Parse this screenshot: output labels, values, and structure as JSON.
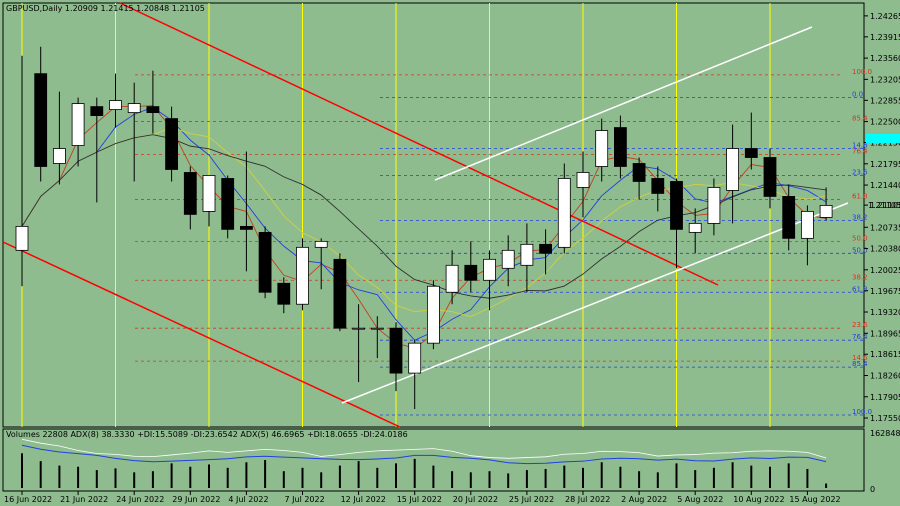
{
  "window": {
    "symbol_info": "GBPUSD,Daily  1.20909 1.21415 1.20848 1.21105"
  },
  "indicator_info": "Volumes 22808  ADX(8) 38.3330 +DI:15.5089 -DI:23.6542  ADX(5) 46.6965 +DI:18.0655 -DI:24.0186",
  "colors": {
    "background": "#8fbc8f",
    "bull_candle": "#ffffff",
    "bear_candle": "#000000",
    "channel_red": "#ff0000",
    "channel_white": "#ffffff",
    "fib_red": "#e03020",
    "fib_blue": "#2040e0",
    "date_markers": "#ffff00",
    "current_price_box": "#00ffff"
  },
  "chart_data": {
    "type": "candlestick",
    "y_range": [
      1.174,
      1.2448
    ],
    "price_ticks": [
      "1.24265",
      "1.23915",
      "1.23560",
      "1.23205",
      "1.22855",
      "1.22500",
      "1.22150",
      "1.21795",
      "1.21440",
      "1.21105",
      "1.20735",
      "1.20380",
      "1.20025",
      "1.19675",
      "1.19320",
      "1.18965",
      "1.18615",
      "1.18260",
      "1.17905",
      "1.17550"
    ],
    "current_price": "1.21105",
    "date_labels": [
      {
        "label": "16 Jun 2022",
        "i": 0
      },
      {
        "label": "21 Jun 2022",
        "i": 3
      },
      {
        "label": "24 Jun 2022",
        "i": 6
      },
      {
        "label": "29 Jun 2022",
        "i": 9
      },
      {
        "label": "4 Jul 2022",
        "i": 12
      },
      {
        "label": "7 Jul 2022",
        "i": 15
      },
      {
        "label": "12 Jul 2022",
        "i": 18
      },
      {
        "label": "15 Jul 2022",
        "i": 21
      },
      {
        "label": "20 Jul 2022",
        "i": 24
      },
      {
        "label": "25 Jul 2022",
        "i": 27
      },
      {
        "label": "28 Jul 2022",
        "i": 30
      },
      {
        "label": "2 Aug 2022",
        "i": 33
      },
      {
        "label": "5 Aug 2022",
        "i": 36
      },
      {
        "label": "10 Aug 2022",
        "i": 39
      },
      {
        "label": "15 Aug 2022",
        "i": 42
      }
    ],
    "candles": [
      {
        "o": 1.2035,
        "h": 1.236,
        "l": 1.1975,
        "c": 1.2075
      },
      {
        "o": 1.233,
        "h": 1.2375,
        "l": 1.215,
        "c": 1.2175
      },
      {
        "o": 1.218,
        "h": 1.23,
        "l": 1.2145,
        "c": 1.2205
      },
      {
        "o": 1.221,
        "h": 1.229,
        "l": 1.2175,
        "c": 1.228
      },
      {
        "o": 1.2275,
        "h": 1.229,
        "l": 1.2115,
        "c": 1.226
      },
      {
        "o": 1.227,
        "h": 1.233,
        "l": 1.224,
        "c": 1.2285
      },
      {
        "o": 1.2265,
        "h": 1.2315,
        "l": 1.215,
        "c": 1.228
      },
      {
        "o": 1.2275,
        "h": 1.2335,
        "l": 1.223,
        "c": 1.2265
      },
      {
        "o": 1.2255,
        "h": 1.2275,
        "l": 1.215,
        "c": 1.217
      },
      {
        "o": 1.2165,
        "h": 1.2175,
        "l": 1.207,
        "c": 1.2095
      },
      {
        "o": 1.21,
        "h": 1.216,
        "l": 1.2075,
        "c": 1.216
      },
      {
        "o": 1.2155,
        "h": 1.216,
        "l": 1.2055,
        "c": 1.207
      },
      {
        "o": 1.2075,
        "h": 1.22,
        "l": 1.2,
        "c": 1.207
      },
      {
        "o": 1.2065,
        "h": 1.2075,
        "l": 1.1955,
        "c": 1.1965
      },
      {
        "o": 1.198,
        "h": 1.199,
        "l": 1.193,
        "c": 1.1945
      },
      {
        "o": 1.1945,
        "h": 1.2055,
        "l": 1.1935,
        "c": 1.204
      },
      {
        "o": 1.204,
        "h": 1.2055,
        "l": 1.197,
        "c": 1.205
      },
      {
        "o": 1.202,
        "h": 1.203,
        "l": 1.19,
        "c": 1.1905
      },
      {
        "o": 1.1905,
        "h": 1.1945,
        "l": 1.1815,
        "c": 1.1905
      },
      {
        "o": 1.1905,
        "h": 1.1925,
        "l": 1.1855,
        "c": 1.1905
      },
      {
        "o": 1.1905,
        "h": 1.1915,
        "l": 1.18,
        "c": 1.183
      },
      {
        "o": 1.183,
        "h": 1.1885,
        "l": 1.177,
        "c": 1.188
      },
      {
        "o": 1.188,
        "h": 1.1985,
        "l": 1.187,
        "c": 1.1975
      },
      {
        "o": 1.1965,
        "h": 1.2035,
        "l": 1.1945,
        "c": 1.201
      },
      {
        "o": 1.201,
        "h": 1.205,
        "l": 1.1965,
        "c": 1.1985
      },
      {
        "o": 1.1985,
        "h": 1.2035,
        "l": 1.1935,
        "c": 1.202
      },
      {
        "o": 1.2005,
        "h": 1.206,
        "l": 1.1975,
        "c": 1.2035
      },
      {
        "o": 1.201,
        "h": 1.208,
        "l": 1.1965,
        "c": 1.2045
      },
      {
        "o": 1.2045,
        "h": 1.207,
        "l": 1.1995,
        "c": 1.203
      },
      {
        "o": 1.204,
        "h": 1.218,
        "l": 1.203,
        "c": 1.2155
      },
      {
        "o": 1.214,
        "h": 1.22,
        "l": 1.209,
        "c": 1.2165
      },
      {
        "o": 1.2175,
        "h": 1.2255,
        "l": 1.215,
        "c": 1.2235
      },
      {
        "o": 1.224,
        "h": 1.226,
        "l": 1.2155,
        "c": 1.2175
      },
      {
        "o": 1.218,
        "h": 1.219,
        "l": 1.212,
        "c": 1.215
      },
      {
        "o": 1.2155,
        "h": 1.2175,
        "l": 1.21,
        "c": 1.213
      },
      {
        "o": 1.215,
        "h": 1.2155,
        "l": 1.2005,
        "c": 1.207
      },
      {
        "o": 1.2065,
        "h": 1.2105,
        "l": 1.203,
        "c": 1.208
      },
      {
        "o": 1.208,
        "h": 1.2155,
        "l": 1.206,
        "c": 1.214
      },
      {
        "o": 1.2135,
        "h": 1.2245,
        "l": 1.208,
        "c": 1.2205
      },
      {
        "o": 1.2205,
        "h": 1.2265,
        "l": 1.217,
        "c": 1.219
      },
      {
        "o": 1.219,
        "h": 1.2205,
        "l": 1.2105,
        "c": 1.2125
      },
      {
        "o": 1.2125,
        "h": 1.2145,
        "l": 1.2035,
        "c": 1.2055
      },
      {
        "o": 1.2055,
        "h": 1.211,
        "l": 1.201,
        "c": 1.21
      },
      {
        "o": 1.209,
        "h": 1.214,
        "l": 1.2085,
        "c": 1.211
      }
    ],
    "fib_red": [
      {
        "label": "100.0",
        "price": 1.2328
      },
      {
        "label": "85.4",
        "price": 1.225
      },
      {
        "label": "76.4",
        "price": 1.2195
      },
      {
        "label": "61.8",
        "price": 1.212
      },
      {
        "label": "50.0",
        "price": 1.205
      },
      {
        "label": "38.2",
        "price": 1.1985
      },
      {
        "label": "23.6",
        "price": 1.1905
      },
      {
        "label": "14.6",
        "price": 1.185
      }
    ],
    "fib_blue": [
      {
        "label": "0.0",
        "price": 1.229
      },
      {
        "label": "14.6",
        "price": 1.2205
      },
      {
        "label": "23.6",
        "price": 1.216
      },
      {
        "label": "38.2",
        "price": 1.2085
      },
      {
        "label": "50.0",
        "price": 1.203
      },
      {
        "label": "61.8",
        "price": 1.1965
      },
      {
        "label": "76.4",
        "price": 1.1885
      },
      {
        "label": "85.4",
        "price": 1.184
      },
      {
        "label": "100.0",
        "price": 1.176
      }
    ],
    "volume": [
      {
        "value": 62,
        "vol": 1
      },
      {
        "value": 48,
        "vol": 1
      },
      {
        "value": 40,
        "vol": 1
      },
      {
        "value": 38,
        "vol": 1
      },
      {
        "value": 32,
        "vol": 1
      },
      {
        "value": 35,
        "vol": 1
      },
      {
        "value": 28,
        "vol": 1
      },
      {
        "value": 30,
        "vol": 1
      },
      {
        "value": 44,
        "vol": 1
      },
      {
        "value": 38,
        "vol": 1
      },
      {
        "value": 42,
        "vol": 1
      },
      {
        "value": 36,
        "vol": 1
      },
      {
        "value": 46,
        "vol": 1
      },
      {
        "value": 50,
        "vol": 1
      },
      {
        "value": 30,
        "vol": 1
      },
      {
        "value": 36,
        "vol": 1
      },
      {
        "value": 28,
        "vol": 1
      },
      {
        "value": 40,
        "vol": 1
      },
      {
        "value": 48,
        "vol": 1
      },
      {
        "value": 36,
        "vol": 1
      },
      {
        "value": 44,
        "vol": 1
      },
      {
        "value": 52,
        "vol": 1
      },
      {
        "value": 40,
        "vol": 1
      },
      {
        "value": 30,
        "vol": 1
      },
      {
        "value": 28,
        "vol": 1
      },
      {
        "value": 30,
        "vol": 1
      },
      {
        "value": 26,
        "vol": 1
      },
      {
        "value": 32,
        "vol": 1
      },
      {
        "value": 34,
        "vol": 1
      },
      {
        "value": 40,
        "vol": 1
      },
      {
        "value": 36,
        "vol": 1
      },
      {
        "value": 46,
        "vol": 1
      },
      {
        "value": 38,
        "vol": 1
      },
      {
        "value": 30,
        "vol": 1
      },
      {
        "value": 28,
        "vol": 1
      },
      {
        "value": 44,
        "vol": 1
      },
      {
        "value": 32,
        "vol": 1
      },
      {
        "value": 36,
        "vol": 1
      },
      {
        "value": 46,
        "vol": 1
      },
      {
        "value": 40,
        "vol": 1
      },
      {
        "value": 38,
        "vol": 1
      },
      {
        "value": 44,
        "vol": 1
      },
      {
        "value": 34,
        "vol": 1
      },
      {
        "value": 8,
        "vol": 1
      }
    ],
    "volume_ticks": {
      "top": "162848",
      "bottom": "0"
    }
  }
}
